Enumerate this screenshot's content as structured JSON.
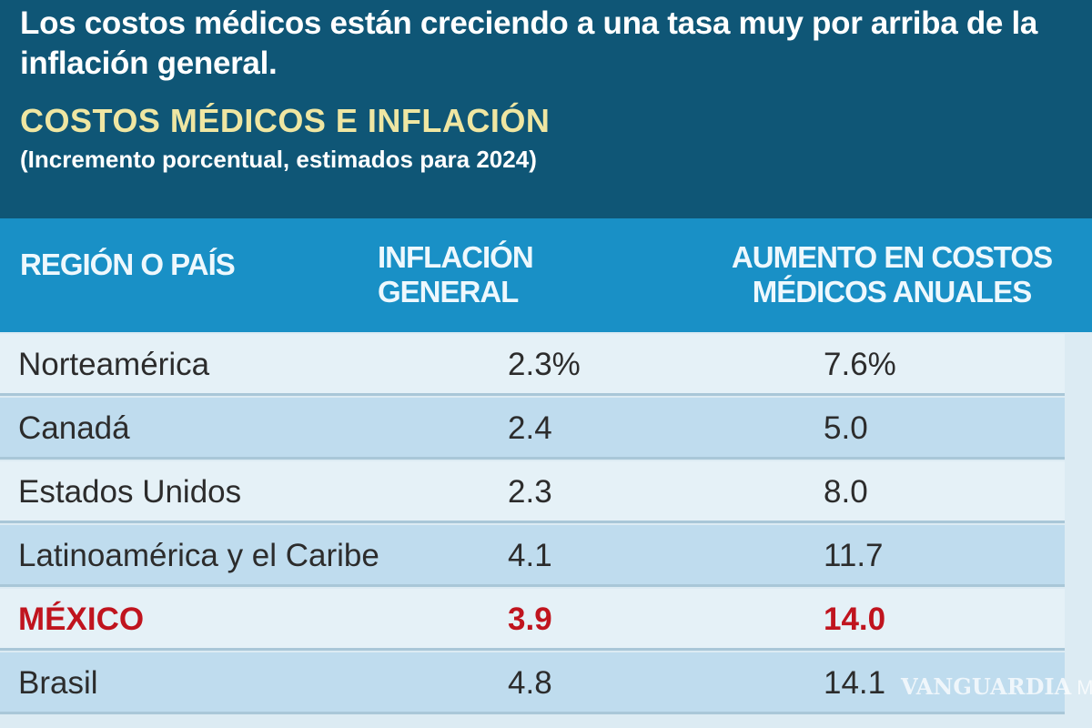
{
  "headline": "Los costos médicos están creciendo a una tasa muy por arriba de la inflación general.",
  "title": "COSTOS MÉDICOS E INFLACIÓN",
  "subtitle": "(Incremento porcentual, estimados para 2024)",
  "columns": [
    "REGIÓN O PAÍS",
    "INFLACIÓN GENERAL",
    "AUMENTO EN COSTOS MÉDICOS ANUALES"
  ],
  "rows": [
    {
      "region": "Norteamérica",
      "inflation": "2.3%",
      "medical": "7.6%"
    },
    {
      "region": "Canadá",
      "inflation": "2.4",
      "medical": "5.0"
    },
    {
      "region": "Estados Unidos",
      "inflation": "2.3",
      "medical": "8.0"
    },
    {
      "region": "Latinoamérica y el Caribe",
      "inflation": "4.1",
      "medical": "11.7"
    },
    {
      "region": "MÉXICO",
      "inflation": "3.9",
      "medical": "14.0",
      "highlight": true
    },
    {
      "region": "Brasil",
      "inflation": "4.8",
      "medical": "14.1"
    }
  ],
  "watermark": {
    "name": "VANGUARDIA",
    "suffix": "MX"
  },
  "colors": {
    "header_dark": "#0f5676",
    "header_blue": "#1990c6",
    "title": "#efe6a2",
    "highlight": "#c0141e"
  }
}
